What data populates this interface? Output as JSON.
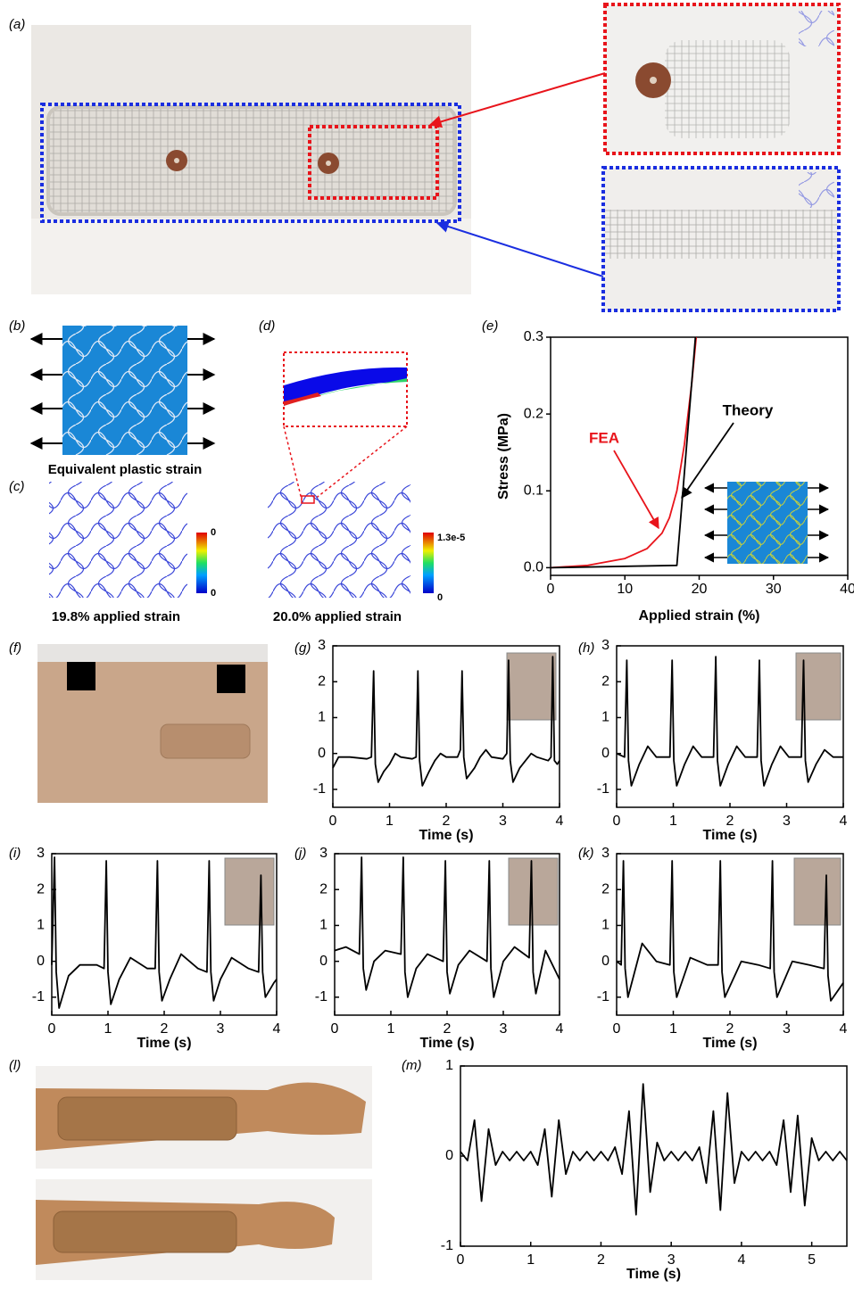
{
  "panel_labels": [
    "(a)",
    "(b)",
    "(c)",
    "(d)",
    "(e)",
    "(f)",
    "(g)",
    "(h)",
    "(i)",
    "(j)",
    "(k)",
    "(l)",
    "(m)"
  ],
  "simulation": {
    "b_caption": "Equivalent plastic strain",
    "c_caption": "19.8% applied strain",
    "d_caption": "20.0% applied strain",
    "colorbar_c": {
      "max": "0",
      "min": "0"
    },
    "colorbar_d": {
      "max": "1.3e-5",
      "min": "0"
    }
  },
  "chart_data": [
    {
      "type": "line",
      "xlabel": "Applied strain (%)",
      "ylabel": "Stress (MPa)",
      "xlim": [
        0,
        40
      ],
      "ylim": [
        -0.01,
        0.3
      ],
      "xticks": [
        0,
        10,
        20,
        30,
        40
      ],
      "yticks": [
        {
          "value": 0,
          "label": "0.0"
        },
        0.1,
        0.2,
        0.3
      ],
      "series": [
        {
          "name": "FEA",
          "color": "#e8141b",
          "x": [
            0,
            5,
            10,
            13,
            15,
            16,
            17,
            18,
            19,
            19.6
          ],
          "values": [
            0,
            0.003,
            0.012,
            0.025,
            0.045,
            0.065,
            0.1,
            0.16,
            0.24,
            0.3
          ]
        },
        {
          "name": "Theory",
          "color": "#000000",
          "x": [
            0,
            17,
            19.5
          ],
          "values": [
            0,
            0.003,
            0.3
          ]
        }
      ]
    },
    {
      "type": "line",
      "xlabel": "Time (s)",
      "xlim": [
        0,
        4
      ],
      "ylim": [
        -1.5,
        3
      ],
      "xticks": [
        0,
        1,
        2,
        3,
        4
      ],
      "yticks": [
        -1,
        0,
        1,
        2,
        3
      ],
      "series": [
        {
          "color": "#000000",
          "x": [
            0,
            0.1,
            0.3,
            0.6,
            0.68,
            0.72,
            0.75,
            0.8,
            0.9,
            1.0,
            1.1,
            1.2,
            1.4,
            1.47,
            1.5,
            1.53,
            1.58,
            1.7,
            1.8,
            1.9,
            2.0,
            2.2,
            2.25,
            2.28,
            2.31,
            2.36,
            2.5,
            2.6,
            2.7,
            2.8,
            3.0,
            3.07,
            3.1,
            3.13,
            3.18,
            3.3,
            3.4,
            3.5,
            3.6,
            3.8,
            3.85,
            3.88,
            3.91,
            3.96,
            4.0
          ],
          "values": [
            -0.4,
            -0.1,
            -0.1,
            -0.15,
            -0.1,
            2.3,
            -0.3,
            -0.8,
            -0.5,
            -0.3,
            0.0,
            -0.1,
            -0.15,
            -0.1,
            2.3,
            -0.2,
            -0.9,
            -0.5,
            -0.2,
            0.0,
            -0.1,
            -0.1,
            0.1,
            2.3,
            -0.1,
            -0.7,
            -0.4,
            -0.1,
            0.1,
            -0.1,
            -0.15,
            0.0,
            2.6,
            -0.2,
            -0.8,
            -0.4,
            -0.2,
            0.0,
            -0.1,
            -0.2,
            -0.1,
            2.7,
            -0.2,
            -0.3,
            -0.2
          ]
        }
      ]
    },
    {
      "type": "line",
      "xlabel": "Time (s)",
      "xlim": [
        0,
        4
      ],
      "ylim": [
        -1.5,
        3
      ],
      "xticks": [
        0,
        1,
        2,
        3,
        4
      ],
      "yticks": [
        -1,
        0,
        1,
        2,
        3
      ],
      "series": [
        {
          "color": "#000000",
          "x": [
            0,
            0.14,
            0.18,
            0.21,
            0.26,
            0.4,
            0.55,
            0.7,
            0.94,
            0.98,
            1.01,
            1.06,
            1.2,
            1.35,
            1.5,
            1.71,
            1.75,
            1.78,
            1.83,
            1.97,
            2.12,
            2.27,
            2.48,
            2.52,
            2.55,
            2.6,
            2.74,
            2.89,
            3.04,
            3.26,
            3.3,
            3.33,
            3.38,
            3.52,
            3.67,
            3.82,
            4.0
          ],
          "values": [
            0.0,
            -0.1,
            2.6,
            -0.2,
            -0.9,
            -0.3,
            0.2,
            -0.1,
            -0.1,
            2.6,
            -0.2,
            -0.9,
            -0.3,
            0.2,
            -0.1,
            -0.1,
            2.7,
            -0.2,
            -0.9,
            -0.3,
            0.2,
            -0.1,
            -0.1,
            2.6,
            -0.2,
            -0.9,
            -0.3,
            0.2,
            -0.1,
            -0.1,
            2.6,
            -0.2,
            -0.8,
            -0.3,
            0.1,
            -0.1,
            -0.1
          ]
        }
      ]
    },
    {
      "type": "line",
      "xlabel": "Time (s)",
      "xlim": [
        0,
        4
      ],
      "ylim": [
        -1.5,
        3
      ],
      "xticks": [
        0,
        1,
        2,
        3,
        4
      ],
      "yticks": [
        -1,
        0,
        1,
        2,
        3
      ],
      "series": [
        {
          "color": "#000000",
          "x": [
            0,
            0.05,
            0.08,
            0.13,
            0.3,
            0.5,
            0.8,
            0.93,
            0.97,
            1.0,
            1.05,
            1.2,
            1.4,
            1.7,
            1.84,
            1.88,
            1.91,
            1.96,
            2.1,
            2.3,
            2.6,
            2.76,
            2.8,
            2.83,
            2.88,
            3.0,
            3.2,
            3.5,
            3.68,
            3.72,
            3.75,
            3.8,
            3.95,
            4.0
          ],
          "values": [
            -0.1,
            2.9,
            -0.3,
            -1.3,
            -0.4,
            -0.1,
            -0.1,
            -0.2,
            2.8,
            -0.3,
            -1.2,
            -0.5,
            0.1,
            -0.2,
            -0.2,
            2.8,
            -0.3,
            -1.1,
            -0.5,
            0.2,
            -0.2,
            -0.3,
            2.8,
            -0.3,
            -1.1,
            -0.5,
            0.1,
            -0.2,
            -0.3,
            2.4,
            -0.3,
            -1.0,
            -0.6,
            -0.5
          ]
        }
      ]
    },
    {
      "type": "line",
      "xlabel": "Time (s)",
      "xlim": [
        0,
        4
      ],
      "ylim": [
        -1.5,
        3
      ],
      "xticks": [
        0,
        1,
        2,
        3,
        4
      ],
      "yticks": [
        -1,
        0,
        1,
        2,
        3
      ],
      "series": [
        {
          "color": "#000000",
          "x": [
            0,
            0.2,
            0.44,
            0.48,
            0.51,
            0.56,
            0.7,
            0.9,
            1.18,
            1.22,
            1.25,
            1.3,
            1.45,
            1.65,
            1.93,
            1.97,
            2.0,
            2.05,
            2.2,
            2.4,
            2.71,
            2.75,
            2.78,
            2.83,
            3.0,
            3.2,
            3.46,
            3.5,
            3.53,
            3.58,
            3.75,
            4.0
          ],
          "values": [
            0.3,
            0.4,
            0.2,
            2.9,
            -0.2,
            -0.8,
            0.0,
            0.3,
            0.2,
            2.9,
            -0.3,
            -1.0,
            -0.2,
            0.2,
            0.0,
            2.8,
            -0.3,
            -0.9,
            -0.1,
            0.3,
            0.0,
            2.8,
            -0.2,
            -1.0,
            0.0,
            0.4,
            0.1,
            2.8,
            -0.3,
            -0.9,
            0.3,
            -0.5
          ]
        }
      ]
    },
    {
      "type": "line",
      "xlabel": "Time (s)",
      "xlim": [
        0,
        4
      ],
      "ylim": [
        -1.5,
        3
      ],
      "xticks": [
        0,
        1,
        2,
        3,
        4
      ],
      "yticks": [
        -1,
        0,
        1,
        2,
        3
      ],
      "series": [
        {
          "color": "#000000",
          "x": [
            0,
            0.08,
            0.12,
            0.15,
            0.2,
            0.45,
            0.7,
            0.94,
            0.98,
            1.01,
            1.06,
            1.3,
            1.6,
            1.79,
            1.83,
            1.86,
            1.91,
            2.2,
            2.5,
            2.71,
            2.75,
            2.78,
            2.83,
            3.1,
            3.4,
            3.66,
            3.7,
            3.73,
            3.78,
            4.0
          ],
          "values": [
            0.0,
            -0.1,
            2.8,
            -0.2,
            -1.0,
            0.5,
            0.0,
            -0.1,
            2.8,
            -0.3,
            -1.0,
            0.1,
            -0.1,
            -0.1,
            2.8,
            -0.3,
            -1.0,
            0.0,
            -0.1,
            -0.2,
            2.8,
            -0.3,
            -1.0,
            0.0,
            -0.1,
            -0.2,
            2.4,
            -0.4,
            -1.1,
            -0.6
          ]
        }
      ]
    },
    {
      "type": "line",
      "xlabel": "Time (s)",
      "xlim": [
        0,
        5.5
      ],
      "ylim": [
        -1,
        1
      ],
      "xticks": [
        0,
        1,
        2,
        3,
        4,
        5
      ],
      "yticks": [
        -1,
        0,
        1
      ],
      "series": [
        {
          "color": "#000000",
          "x": [
            0,
            0.1,
            0.2,
            0.3,
            0.4,
            0.5,
            0.6,
            0.7,
            0.8,
            0.9,
            1.0,
            1.1,
            1.2,
            1.3,
            1.4,
            1.5,
            1.6,
            1.7,
            1.8,
            1.9,
            2.0,
            2.1,
            2.2,
            2.3,
            2.4,
            2.5,
            2.6,
            2.7,
            2.8,
            2.9,
            3.0,
            3.1,
            3.2,
            3.3,
            3.4,
            3.5,
            3.6,
            3.7,
            3.8,
            3.9,
            4.0,
            4.1,
            4.2,
            4.3,
            4.4,
            4.5,
            4.6,
            4.7,
            4.8,
            4.9,
            5.0,
            5.1,
            5.2,
            5.3,
            5.4,
            5.5
          ],
          "values": [
            0.05,
            -0.05,
            0.4,
            -0.5,
            0.3,
            -0.1,
            0.05,
            -0.05,
            0.05,
            -0.05,
            0.05,
            -0.1,
            0.3,
            -0.45,
            0.4,
            -0.2,
            0.05,
            -0.05,
            0.05,
            -0.05,
            0.05,
            -0.05,
            0.1,
            -0.2,
            0.5,
            -0.65,
            0.8,
            -0.4,
            0.15,
            -0.05,
            0.05,
            -0.05,
            0.05,
            -0.05,
            0.1,
            -0.3,
            0.5,
            -0.6,
            0.7,
            -0.3,
            0.05,
            -0.05,
            0.05,
            -0.05,
            0.05,
            -0.1,
            0.4,
            -0.4,
            0.45,
            -0.55,
            0.2,
            -0.05,
            0.05,
            -0.05,
            0.05,
            -0.05
          ]
        }
      ]
    }
  ]
}
